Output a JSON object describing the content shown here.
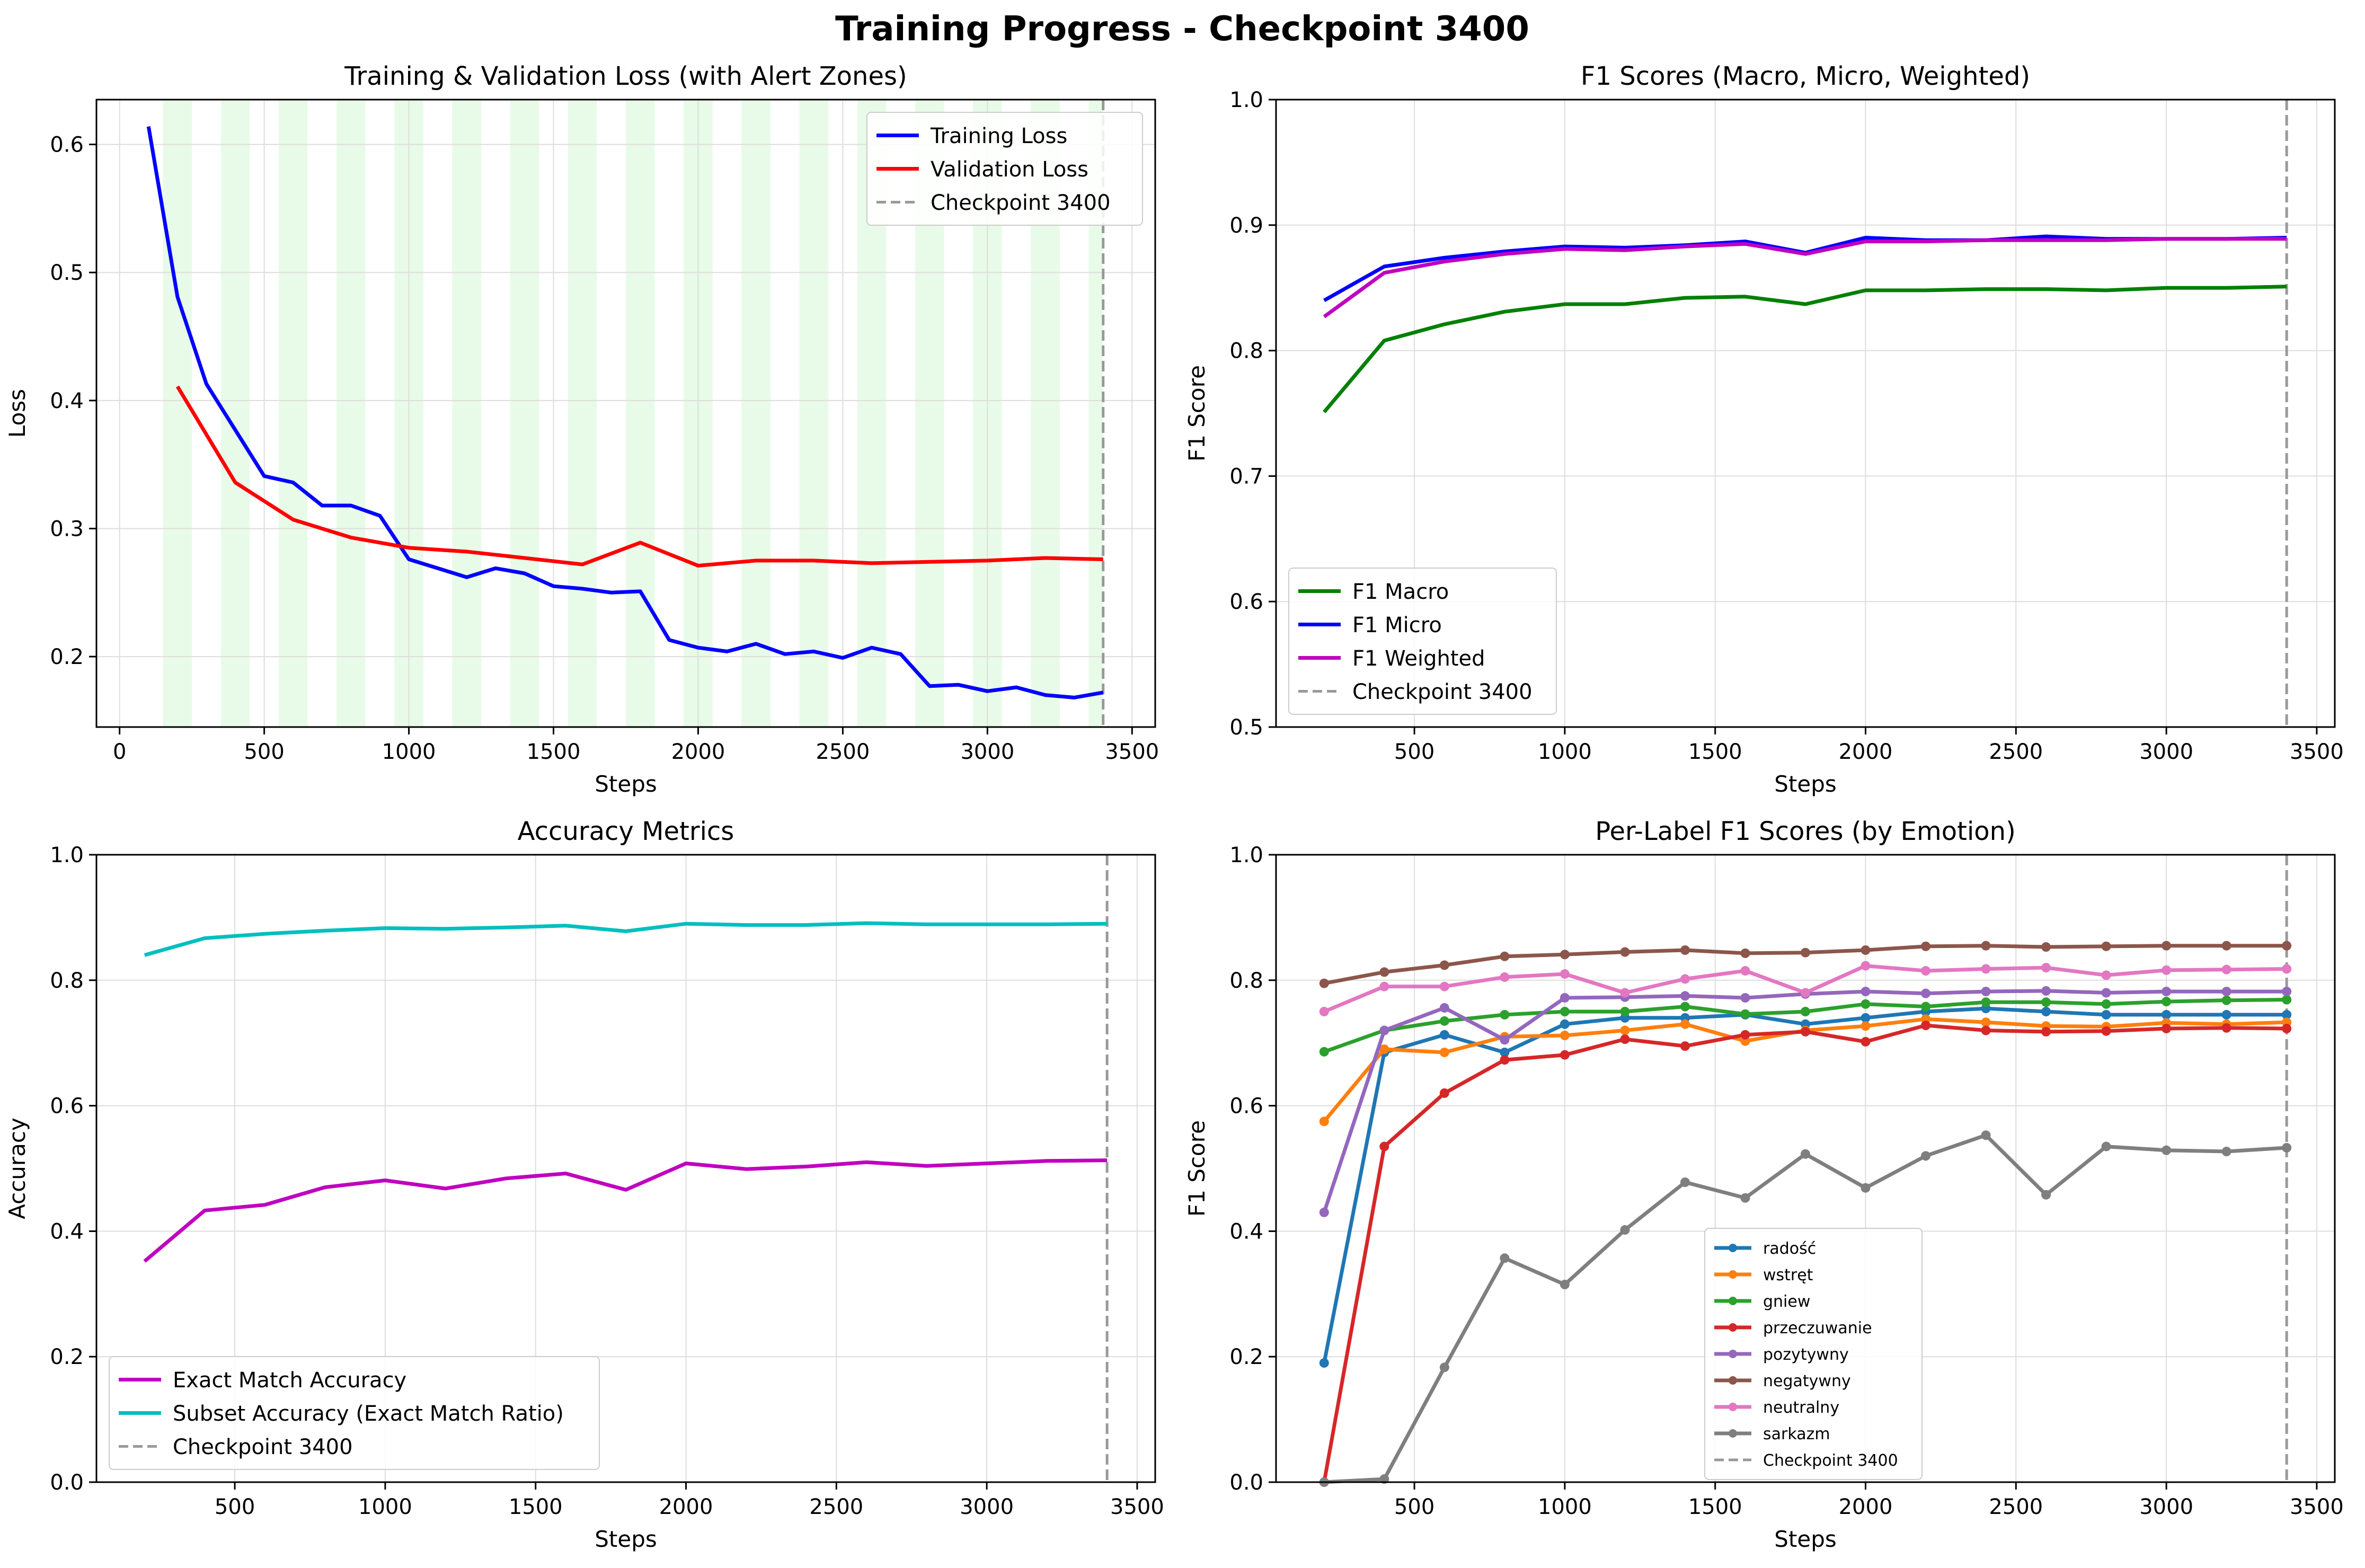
{
  "figure": {
    "suptitle": "Training Progress - Checkpoint 3400"
  },
  "colors": {
    "training_loss": "#0000ff",
    "validation_loss": "#ff0000",
    "checkpoint": "#999999",
    "alert_zone": "#e8fbe8",
    "f1_macro": "#008000",
    "f1_micro": "#0000ff",
    "f1_weighted": "#c000c0",
    "exact_match": "#c000c0",
    "subset_accuracy": "#00bfbf",
    "label_palette": [
      "#1f77b4",
      "#ff7f0e",
      "#2ca02c",
      "#d62728",
      "#9467bd",
      "#8c564b",
      "#e377c2",
      "#7f7f7f"
    ]
  },
  "chart_data": [
    {
      "id": "loss",
      "type": "line",
      "title": "Training & Validation Loss (with Alert Zones)",
      "xlabel": "Steps",
      "ylabel": "Loss",
      "xlim": [
        -80,
        3580
      ],
      "ylim": [
        0.145,
        0.635
      ],
      "xticks": [
        0,
        500,
        1000,
        1500,
        2000,
        2500,
        3000,
        3500
      ],
      "yticks": [
        0.2,
        0.3,
        0.4,
        0.5,
        0.6
      ],
      "ytick_labels": [
        "0.2",
        "0.3",
        "0.4",
        "0.5",
        "0.6"
      ],
      "grid": true,
      "legend_loc": "upper right",
      "checkpoint": 3400,
      "alert_zones": [
        [
          150,
          250
        ],
        [
          350,
          450
        ],
        [
          550,
          650
        ],
        [
          750,
          850
        ],
        [
          950,
          1050
        ],
        [
          1150,
          1250
        ],
        [
          1350,
          1450
        ],
        [
          1550,
          1650
        ],
        [
          1750,
          1850
        ],
        [
          1950,
          2050
        ],
        [
          2150,
          2250
        ],
        [
          2350,
          2450
        ],
        [
          2550,
          2650
        ],
        [
          2750,
          2850
        ],
        [
          2950,
          3050
        ],
        [
          3150,
          3250
        ],
        [
          3350,
          3400
        ]
      ],
      "series": [
        {
          "name": "Training Loss",
          "color_key": "training_loss",
          "x": [
            100,
            200,
            300,
            400,
            500,
            600,
            700,
            800,
            900,
            1000,
            1100,
            1200,
            1300,
            1400,
            1500,
            1600,
            1700,
            1800,
            1900,
            2000,
            2100,
            2200,
            2300,
            2400,
            2500,
            2600,
            2700,
            2800,
            2900,
            3000,
            3100,
            3200,
            3300,
            3400
          ],
          "y": [
            0.614,
            0.481,
            0.413,
            0.377,
            0.341,
            0.336,
            0.318,
            0.318,
            0.31,
            0.276,
            0.269,
            0.262,
            0.269,
            0.265,
            0.255,
            0.253,
            0.25,
            0.251,
            0.213,
            0.207,
            0.204,
            0.21,
            0.202,
            0.204,
            0.199,
            0.207,
            0.202,
            0.177,
            0.178,
            0.173,
            0.176,
            0.17,
            0.168,
            0.172
          ]
        },
        {
          "name": "Validation Loss",
          "color_key": "validation_loss",
          "x": [
            200,
            400,
            600,
            800,
            1000,
            1200,
            1400,
            1600,
            1800,
            2000,
            2200,
            2400,
            2600,
            2800,
            3000,
            3200,
            3400
          ],
          "y": [
            0.411,
            0.336,
            0.307,
            0.293,
            0.285,
            0.282,
            0.277,
            0.272,
            0.289,
            0.271,
            0.275,
            0.275,
            0.273,
            0.274,
            0.275,
            0.277,
            0.276
          ]
        }
      ],
      "legend": [
        "Training Loss",
        "Validation Loss",
        "Checkpoint 3400"
      ]
    },
    {
      "id": "f1",
      "type": "line",
      "title": "F1 Scores (Macro, Micro, Weighted)",
      "xlabel": "Steps",
      "ylabel": "F1 Score",
      "xlim": [
        40,
        3560
      ],
      "ylim": [
        0.5,
        1.0
      ],
      "xticks": [
        500,
        1000,
        1500,
        2000,
        2500,
        3000,
        3500
      ],
      "yticks": [
        0.5,
        0.6,
        0.7,
        0.8,
        0.9,
        1.0
      ],
      "ytick_labels": [
        "0.5",
        "0.6",
        "0.7",
        "0.8",
        "0.9",
        "1.0"
      ],
      "grid": true,
      "legend_loc": "lower left",
      "checkpoint": 3400,
      "series": [
        {
          "name": "F1 Macro",
          "color_key": "f1_macro",
          "x": [
            200,
            400,
            600,
            800,
            1000,
            1200,
            1400,
            1600,
            1800,
            2000,
            2200,
            2400,
            2600,
            2800,
            3000,
            3200,
            3400
          ],
          "y": [
            0.751,
            0.808,
            0.821,
            0.831,
            0.837,
            0.837,
            0.842,
            0.843,
            0.837,
            0.848,
            0.848,
            0.849,
            0.849,
            0.848,
            0.85,
            0.85,
            0.851
          ]
        },
        {
          "name": "F1 Micro",
          "color_key": "f1_micro",
          "x": [
            200,
            400,
            600,
            800,
            1000,
            1200,
            1400,
            1600,
            1800,
            2000,
            2200,
            2400,
            2600,
            2800,
            3000,
            3200,
            3400
          ],
          "y": [
            0.84,
            0.867,
            0.874,
            0.879,
            0.883,
            0.882,
            0.884,
            0.887,
            0.878,
            0.89,
            0.888,
            0.888,
            0.891,
            0.889,
            0.889,
            0.889,
            0.89
          ]
        },
        {
          "name": "F1 Weighted",
          "color_key": "f1_weighted",
          "x": [
            200,
            400,
            600,
            800,
            1000,
            1200,
            1400,
            1600,
            1800,
            2000,
            2200,
            2400,
            2600,
            2800,
            3000,
            3200,
            3400
          ],
          "y": [
            0.827,
            0.862,
            0.871,
            0.877,
            0.881,
            0.88,
            0.883,
            0.885,
            0.877,
            0.887,
            0.887,
            0.888,
            0.888,
            0.888,
            0.889,
            0.889,
            0.889
          ]
        }
      ],
      "legend": [
        "F1 Macro",
        "F1 Micro",
        "F1 Weighted",
        "Checkpoint 3400"
      ]
    },
    {
      "id": "acc",
      "type": "line",
      "title": "Accuracy Metrics",
      "xlabel": "Steps",
      "ylabel": "Accuracy",
      "xlim": [
        40,
        3560
      ],
      "ylim": [
        0.0,
        1.0
      ],
      "xticks": [
        500,
        1000,
        1500,
        2000,
        2500,
        3000,
        3500
      ],
      "yticks": [
        0.0,
        0.2,
        0.4,
        0.6,
        0.8,
        1.0
      ],
      "ytick_labels": [
        "0.0",
        "0.2",
        "0.4",
        "0.6",
        "0.8",
        "1.0"
      ],
      "grid": true,
      "legend_loc": "lower left",
      "checkpoint": 3400,
      "series": [
        {
          "name": "Exact Match Accuracy",
          "color_key": "exact_match",
          "x": [
            200,
            400,
            600,
            800,
            1000,
            1200,
            1400,
            1600,
            1800,
            2000,
            2200,
            2400,
            2600,
            2800,
            3000,
            3200,
            3400
          ],
          "y": [
            0.352,
            0.433,
            0.442,
            0.47,
            0.481,
            0.468,
            0.484,
            0.492,
            0.466,
            0.508,
            0.499,
            0.503,
            0.51,
            0.504,
            0.508,
            0.512,
            0.513
          ]
        },
        {
          "name": "Subset Accuracy (Exact Match Ratio)",
          "color_key": "subset_accuracy",
          "x": [
            200,
            400,
            600,
            800,
            1000,
            1200,
            1400,
            1600,
            1800,
            2000,
            2200,
            2400,
            2600,
            2800,
            3000,
            3200,
            3400
          ],
          "y": [
            0.84,
            0.867,
            0.874,
            0.879,
            0.883,
            0.882,
            0.884,
            0.887,
            0.878,
            0.89,
            0.888,
            0.888,
            0.891,
            0.889,
            0.889,
            0.889,
            0.89
          ]
        }
      ],
      "legend": [
        "Exact Match Accuracy",
        "Subset Accuracy (Exact Match Ratio)",
        "Checkpoint 3400"
      ]
    },
    {
      "id": "labels",
      "type": "line",
      "title": "Per-Label F1 Scores (by Emotion)",
      "xlabel": "Steps",
      "ylabel": "F1 Score",
      "xlim": [
        40,
        3560
      ],
      "ylim": [
        0.0,
        1.0
      ],
      "xticks": [
        500,
        1000,
        1500,
        2000,
        2500,
        3000,
        3500
      ],
      "yticks": [
        0.0,
        0.2,
        0.4,
        0.6,
        0.8,
        1.0
      ],
      "ytick_labels": [
        "0.0",
        "0.2",
        "0.4",
        "0.6",
        "0.8",
        "1.0"
      ],
      "grid": true,
      "legend_loc": "lower center",
      "markers": true,
      "checkpoint": 3400,
      "series": [
        {
          "name": "radość",
          "color_idx": 0,
          "x": [
            200,
            400,
            600,
            800,
            1000,
            1200,
            1400,
            1600,
            1800,
            2000,
            2200,
            2400,
            2600,
            2800,
            3000,
            3200,
            3400
          ],
          "y": [
            0.19,
            0.685,
            0.713,
            0.685,
            0.73,
            0.74,
            0.74,
            0.745,
            0.73,
            0.74,
            0.75,
            0.755,
            0.75,
            0.745,
            0.745,
            0.745,
            0.745
          ]
        },
        {
          "name": "wstręt",
          "color_idx": 1,
          "x": [
            200,
            400,
            600,
            800,
            1000,
            1200,
            1400,
            1600,
            1800,
            2000,
            2200,
            2400,
            2600,
            2800,
            3000,
            3200,
            3400
          ],
          "y": [
            0.575,
            0.69,
            0.685,
            0.71,
            0.712,
            0.72,
            0.73,
            0.703,
            0.72,
            0.727,
            0.738,
            0.733,
            0.727,
            0.726,
            0.732,
            0.73,
            0.733
          ]
        },
        {
          "name": "gniew",
          "color_idx": 2,
          "x": [
            200,
            400,
            600,
            800,
            1000,
            1200,
            1400,
            1600,
            1800,
            2000,
            2200,
            2400,
            2600,
            2800,
            3000,
            3200,
            3400
          ],
          "y": [
            0.686,
            0.72,
            0.735,
            0.745,
            0.75,
            0.75,
            0.758,
            0.746,
            0.75,
            0.762,
            0.758,
            0.765,
            0.765,
            0.762,
            0.766,
            0.768,
            0.769
          ]
        },
        {
          "name": "przeczuwanie",
          "color_idx": 3,
          "x": [
            200,
            400,
            600,
            800,
            1000,
            1200,
            1400,
            1600,
            1800,
            2000,
            2200,
            2400,
            2600,
            2800,
            3000,
            3200,
            3400
          ],
          "y": [
            0.0,
            0.535,
            0.62,
            0.673,
            0.681,
            0.706,
            0.695,
            0.713,
            0.718,
            0.702,
            0.728,
            0.72,
            0.718,
            0.719,
            0.723,
            0.724,
            0.723
          ]
        },
        {
          "name": "pozytywny",
          "color_idx": 4,
          "x": [
            200,
            400,
            600,
            800,
            1000,
            1200,
            1400,
            1600,
            1800,
            2000,
            2200,
            2400,
            2600,
            2800,
            3000,
            3200,
            3400
          ],
          "y": [
            0.43,
            0.72,
            0.756,
            0.705,
            0.772,
            0.773,
            0.775,
            0.772,
            0.778,
            0.782,
            0.779,
            0.782,
            0.783,
            0.78,
            0.782,
            0.782,
            0.782
          ]
        },
        {
          "name": "negatywny",
          "color_idx": 5,
          "x": [
            200,
            400,
            600,
            800,
            1000,
            1200,
            1400,
            1600,
            1800,
            2000,
            2200,
            2400,
            2600,
            2800,
            3000,
            3200,
            3400
          ],
          "y": [
            0.795,
            0.813,
            0.824,
            0.838,
            0.841,
            0.845,
            0.848,
            0.843,
            0.844,
            0.848,
            0.854,
            0.855,
            0.853,
            0.854,
            0.855,
            0.855,
            0.855
          ]
        },
        {
          "name": "neutralny",
          "color_idx": 6,
          "x": [
            200,
            400,
            600,
            800,
            1000,
            1200,
            1400,
            1600,
            1800,
            2000,
            2200,
            2400,
            2600,
            2800,
            3000,
            3200,
            3400
          ],
          "y": [
            0.75,
            0.79,
            0.79,
            0.805,
            0.81,
            0.78,
            0.802,
            0.815,
            0.78,
            0.823,
            0.815,
            0.818,
            0.82,
            0.808,
            0.816,
            0.817,
            0.818
          ]
        },
        {
          "name": "sarkazm",
          "color_idx": 7,
          "x": [
            200,
            400,
            600,
            800,
            1000,
            1200,
            1400,
            1600,
            1800,
            2000,
            2200,
            2400,
            2600,
            2800,
            3000,
            3200,
            3400
          ],
          "y": [
            0.0,
            0.005,
            0.183,
            0.357,
            0.315,
            0.402,
            0.478,
            0.453,
            0.523,
            0.469,
            0.52,
            0.553,
            0.458,
            0.535,
            0.529,
            0.527,
            0.533
          ]
        }
      ],
      "legend": [
        "radość",
        "wstręt",
        "gniew",
        "przeczuwanie",
        "pozytywny",
        "negatywny",
        "neutralny",
        "sarkazm",
        "Checkpoint 3400"
      ]
    }
  ]
}
